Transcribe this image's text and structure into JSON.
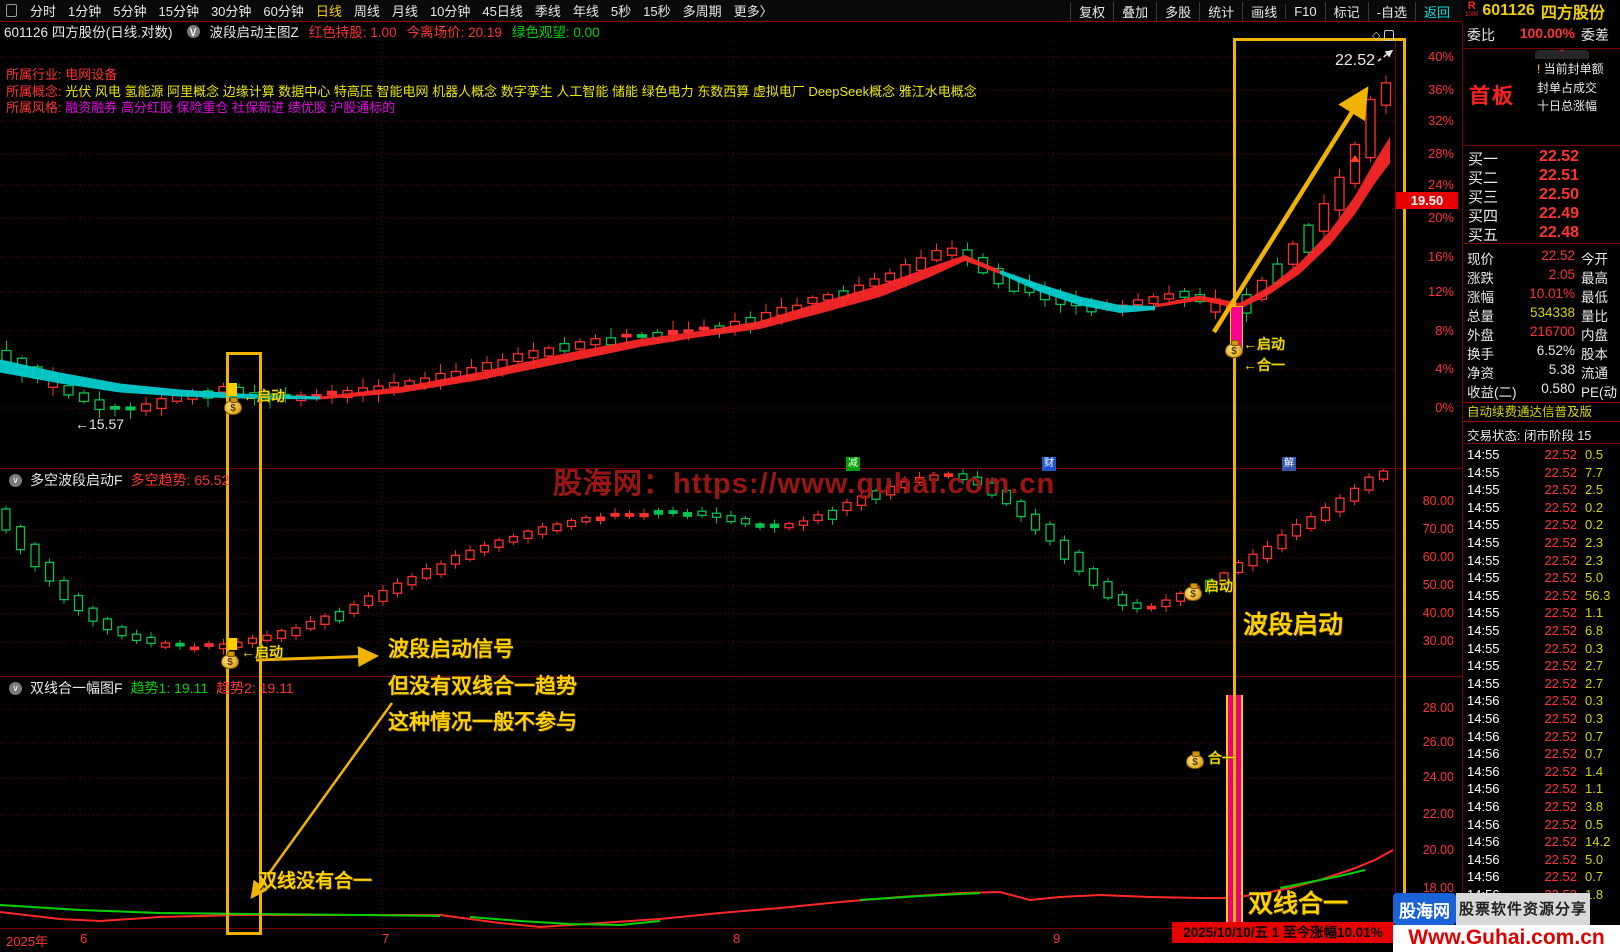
{
  "titlebar": {
    "periods": [
      "分时",
      "1分钟",
      "5分钟",
      "15分钟",
      "30分钟",
      "60分钟",
      "日线",
      "周线",
      "月线",
      "10分钟",
      "45日线",
      "季线",
      "年线",
      "5秒",
      "15秒",
      "多周期",
      "更多〉"
    ],
    "active_period": "日线",
    "right_menu": [
      "复权",
      "叠加",
      "多股",
      "统计",
      "画线",
      "F10",
      "标记",
      "-自选",
      "返回"
    ],
    "logo_r": "R",
    "logo_1000": "1000",
    "stock_code": "601126",
    "stock_name": "四方股份"
  },
  "info_line": {
    "title": "601126 四方股份(日线.对数)",
    "indicator": "波段启动主图Z",
    "hold": "红色持股: 1.00",
    "exit": "今离场价: 20.19",
    "watch": "绿色观望: 0.00"
  },
  "stock_meta": {
    "industry_label": "所属行业:",
    "industry": "电网设备",
    "concept_label": "所属概念:",
    "concepts": "光伏 风电 氢能源 阿里概念 边缘计算 数据中心 特高压 智能电网 机器人概念 数字孪生 人工智能 储能 绿色电力 东数西算 虚拟电厂 DeepSeek概念 雅江水电概念",
    "style_label": "所属风格:",
    "styles": "融资融券 高分红股 保险重仓 社保新进 绩优股 沪股通标的"
  },
  "main_chart": {
    "price_label": "22.52",
    "low_label": "←15.57",
    "signal_start": "←启动",
    "signal_merge": "←合一",
    "axis_percent": [
      "40%",
      "36%",
      "32%",
      "28%",
      "24%",
      "20%",
      "16%",
      "12%",
      "8%",
      "4%",
      "0%"
    ],
    "price_chip": "19.50",
    "event_badges": [
      "减",
      "财",
      "解"
    ],
    "watermark": "股海网：https://www.guhai.com.cn"
  },
  "panel2": {
    "title": "多空波段启动F",
    "value_label": "多空趋势: 65.52",
    "axis": [
      "80.00",
      "70.00",
      "60.00",
      "50.00",
      "40.00",
      "30.00"
    ],
    "signal_left": "←启动",
    "note_line1": "波段启动信号",
    "note_line2": "但没有双线合一趋势",
    "note_line3": "这种情况一般不参与",
    "signal_right": "启动",
    "big_label": "波段启动"
  },
  "panel3": {
    "title": "双线合一幅图F",
    "value1": "趋势1: 19.11",
    "value2": "趋势2: 19.11",
    "axis": [
      "28.00",
      "26.00",
      "24.00",
      "22.00",
      "20.00",
      "18.00"
    ],
    "note": "双线没有合一",
    "signal_right": "合一",
    "big_label": "双线合一"
  },
  "xaxis": {
    "labels": [
      "2025年",
      "6",
      "7",
      "8",
      "9"
    ],
    "status_chip": "2025/10/10/五 1 至今涨幅10.01%"
  },
  "right_panel": {
    "weibi_label": "委比",
    "weibi_value": "100.00%",
    "weicha_label": "委差",
    "shouban": "首板",
    "info_lines": [
      "当前封单额",
      "封单占成交",
      "十日总涨幅"
    ],
    "bids": [
      {
        "label": "买一",
        "price": "22.52"
      },
      {
        "label": "买二",
        "price": "22.51"
      },
      {
        "label": "买三",
        "price": "22.50"
      },
      {
        "label": "买四",
        "price": "22.49"
      },
      {
        "label": "买五",
        "price": "22.48"
      }
    ],
    "quote_rows": [
      {
        "l": "现价",
        "v": "22.52",
        "c": "vr",
        "r": "今开"
      },
      {
        "l": "涨跌",
        "v": "2.05",
        "c": "vr",
        "r": "最高"
      },
      {
        "l": "涨幅",
        "v": "10.01%",
        "c": "vr",
        "r": "最低"
      },
      {
        "l": "总量",
        "v": "534338",
        "c": "vy",
        "r": "量比"
      },
      {
        "l": "外盘",
        "v": "216700",
        "c": "vr",
        "r": "内盘"
      },
      {
        "l": "换手",
        "v": "6.52%",
        "c": "vw",
        "r": "股本"
      },
      {
        "l": "净资",
        "v": "5.38",
        "c": "vw",
        "r": "流通"
      },
      {
        "l": "收益(二)",
        "v": "0.580",
        "c": "vw",
        "r": "PE(动"
      }
    ],
    "notice": "自动续费通达信普及版",
    "trade_status": "交易状态: 闭市阶段 15",
    "ticks": [
      [
        "14:55",
        "22.52",
        "0.5"
      ],
      [
        "14:55",
        "22.52",
        "7.7"
      ],
      [
        "14:55",
        "22.52",
        "2.5"
      ],
      [
        "14:55",
        "22.52",
        "0.2"
      ],
      [
        "14:55",
        "22.52",
        "0.2"
      ],
      [
        "14:55",
        "22.52",
        "2.3"
      ],
      [
        "14:55",
        "22.52",
        "2.3"
      ],
      [
        "14:55",
        "22.52",
        "5.0"
      ],
      [
        "14:55",
        "22.52",
        "56.3"
      ],
      [
        "14:55",
        "22.52",
        "1.1"
      ],
      [
        "14:55",
        "22.52",
        "6.8"
      ],
      [
        "14:55",
        "22.52",
        "0.3"
      ],
      [
        "14:55",
        "22.52",
        "2.7"
      ],
      [
        "14:55",
        "22.52",
        "2.7"
      ],
      [
        "14:56",
        "22.52",
        "0.3"
      ],
      [
        "14:56",
        "22.52",
        "0.3"
      ],
      [
        "14:56",
        "22.52",
        "0.7"
      ],
      [
        "14:56",
        "22.52",
        "0.7"
      ],
      [
        "14:56",
        "22.52",
        "1.4"
      ],
      [
        "14:56",
        "22.52",
        "1.1"
      ],
      [
        "14:56",
        "22.52",
        "3.8"
      ],
      [
        "14:56",
        "22.52",
        "0.5"
      ],
      [
        "14:56",
        "22.52",
        "14.2"
      ],
      [
        "14:56",
        "22.52",
        "5.0"
      ],
      [
        "14:56",
        "22.52",
        "0.7"
      ],
      [
        "14:56",
        "22.52",
        "1.8"
      ]
    ]
  },
  "watermark_box": {
    "site": "股海网",
    "slogan": "股票软件资源分享",
    "url": "Www.Guhai.com.cn"
  }
}
